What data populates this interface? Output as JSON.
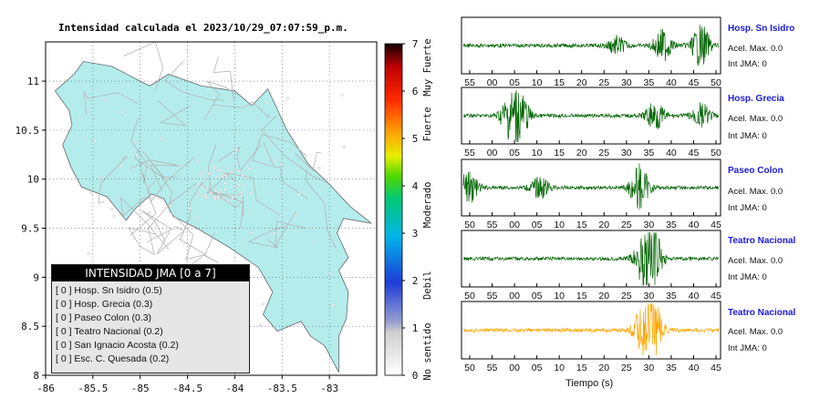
{
  "map": {
    "title": "Intensidad calculada el 2023/10/29_07:07:59_p.m.",
    "lon_ticks": [
      "-86",
      "-85.5",
      "-85",
      "-84.5",
      "-84",
      "-83.5",
      "-83"
    ],
    "lat_ticks": [
      "11",
      "10.5",
      "10",
      "9.5",
      "9",
      "8.5",
      "8"
    ],
    "land_color": "#b4ecec"
  },
  "colorbar": {
    "ticks": [
      "7",
      "6",
      "5",
      "4",
      "3",
      "2",
      "1",
      "0"
    ],
    "labels": [
      "Muy Fuerte",
      "Fuerte",
      "Moderado",
      "Debil",
      "No sentido"
    ]
  },
  "legend": {
    "title": "INTENSIDAD JMA [0 a 7]",
    "rows": [
      "[ 0 ]  Hosp. Sn Isidro (0.5)",
      "[ 0 ]  Hosp. Grecia (0.3)",
      "[ 0 ]  Paseo Colon (0.3)",
      "[ 0 ]  Teatro Nacional (0.2)",
      "[ 0 ]  San Ignacio Acosta (0.2)",
      "[ 0 ]  Esc. C. Quesada (0.2)"
    ]
  },
  "stations": [
    {
      "name": "Hosp. Sn Isidro",
      "acel": "Acel. Max. 0.0",
      "int": "Int JMA: 0",
      "color": "#006400",
      "ticks": [
        "55",
        "00",
        "05",
        "10",
        "15",
        "20",
        "25",
        "30",
        "35",
        "40",
        "45",
        "50"
      ]
    },
    {
      "name": "Hosp. Grecia",
      "acel": "Acel. Max. 0.0",
      "int": "Int JMA: 0",
      "color": "#006400",
      "ticks": [
        "55",
        "00",
        "05",
        "10",
        "15",
        "20",
        "25",
        "30",
        "35",
        "40",
        "45",
        "50"
      ]
    },
    {
      "name": "Paseo Colon",
      "acel": "Acel. Max. 0.0",
      "int": "Int JMA: 0",
      "color": "#006400",
      "ticks": [
        "50",
        "55",
        "00",
        "05",
        "10",
        "15",
        "20",
        "25",
        "30",
        "35",
        "40",
        "45"
      ]
    },
    {
      "name": "Teatro Nacional",
      "acel": "Acel. Max. 0.0",
      "int": "Int JMA: 0",
      "color": "#006400",
      "ticks": [
        "50",
        "55",
        "00",
        "05",
        "10",
        "15",
        "20",
        "25",
        "30",
        "35",
        "40",
        "45"
      ]
    },
    {
      "name": "Teatro Nacional",
      "acel": "Acel. Max. 0.0",
      "int": "Int JMA: 0",
      "color": "#ffa500",
      "ticks": [
        "50",
        "55",
        "00",
        "05",
        "10",
        "15",
        "20",
        "25",
        "30",
        "35",
        "40",
        "45"
      ]
    }
  ],
  "xlabel": "Tiempo (s)",
  "chart_data": [
    {
      "type": "other",
      "title": "Intensidad calculada el 2023/10/29_07:07:59_p.m.",
      "xlim": [
        -86,
        -82.5
      ],
      "ylim": [
        8,
        11.4
      ],
      "colorbar_range": [
        0,
        7
      ]
    },
    {
      "type": "line",
      "xlabel": "Tiempo (s)",
      "series": [
        {
          "name": "Hosp. Sn Isidro"
        },
        {
          "name": "Hosp. Grecia"
        },
        {
          "name": "Paseo Colon"
        },
        {
          "name": "Teatro Nacional"
        },
        {
          "name": "Teatro Nacional"
        }
      ]
    }
  ]
}
